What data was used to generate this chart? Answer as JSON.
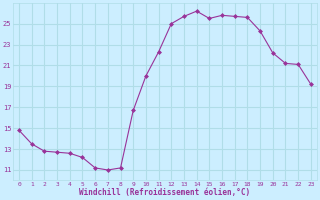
{
  "hours": [
    0,
    1,
    2,
    3,
    4,
    5,
    6,
    7,
    8,
    9,
    10,
    11,
    12,
    13,
    14,
    15,
    16,
    17,
    18,
    19,
    20,
    21,
    22,
    23
  ],
  "values": [
    14.8,
    13.5,
    12.8,
    12.7,
    12.6,
    12.2,
    11.2,
    11.0,
    11.2,
    16.7,
    20.0,
    22.3,
    25.0,
    25.7,
    26.2,
    25.5,
    25.8,
    25.7,
    25.6,
    24.3,
    22.2,
    21.2,
    21.1,
    19.2
  ],
  "line_color": "#993399",
  "marker": "D",
  "marker_size": 2.0,
  "bg_color": "#cceeff",
  "grid_color": "#b0dde8",
  "tick_color": "#993399",
  "label_color": "#993399",
  "xlabel": "Windchill (Refroidissement éolien,°C)",
  "xlim": [
    -0.5,
    23.5
  ],
  "ylim": [
    10.0,
    27.0
  ],
  "yticks": [
    11,
    13,
    15,
    17,
    19,
    21,
    23,
    25
  ],
  "xticks": [
    0,
    1,
    2,
    3,
    4,
    5,
    6,
    7,
    8,
    9,
    10,
    11,
    12,
    13,
    14,
    15,
    16,
    17,
    18,
    19,
    20,
    21,
    22,
    23
  ]
}
